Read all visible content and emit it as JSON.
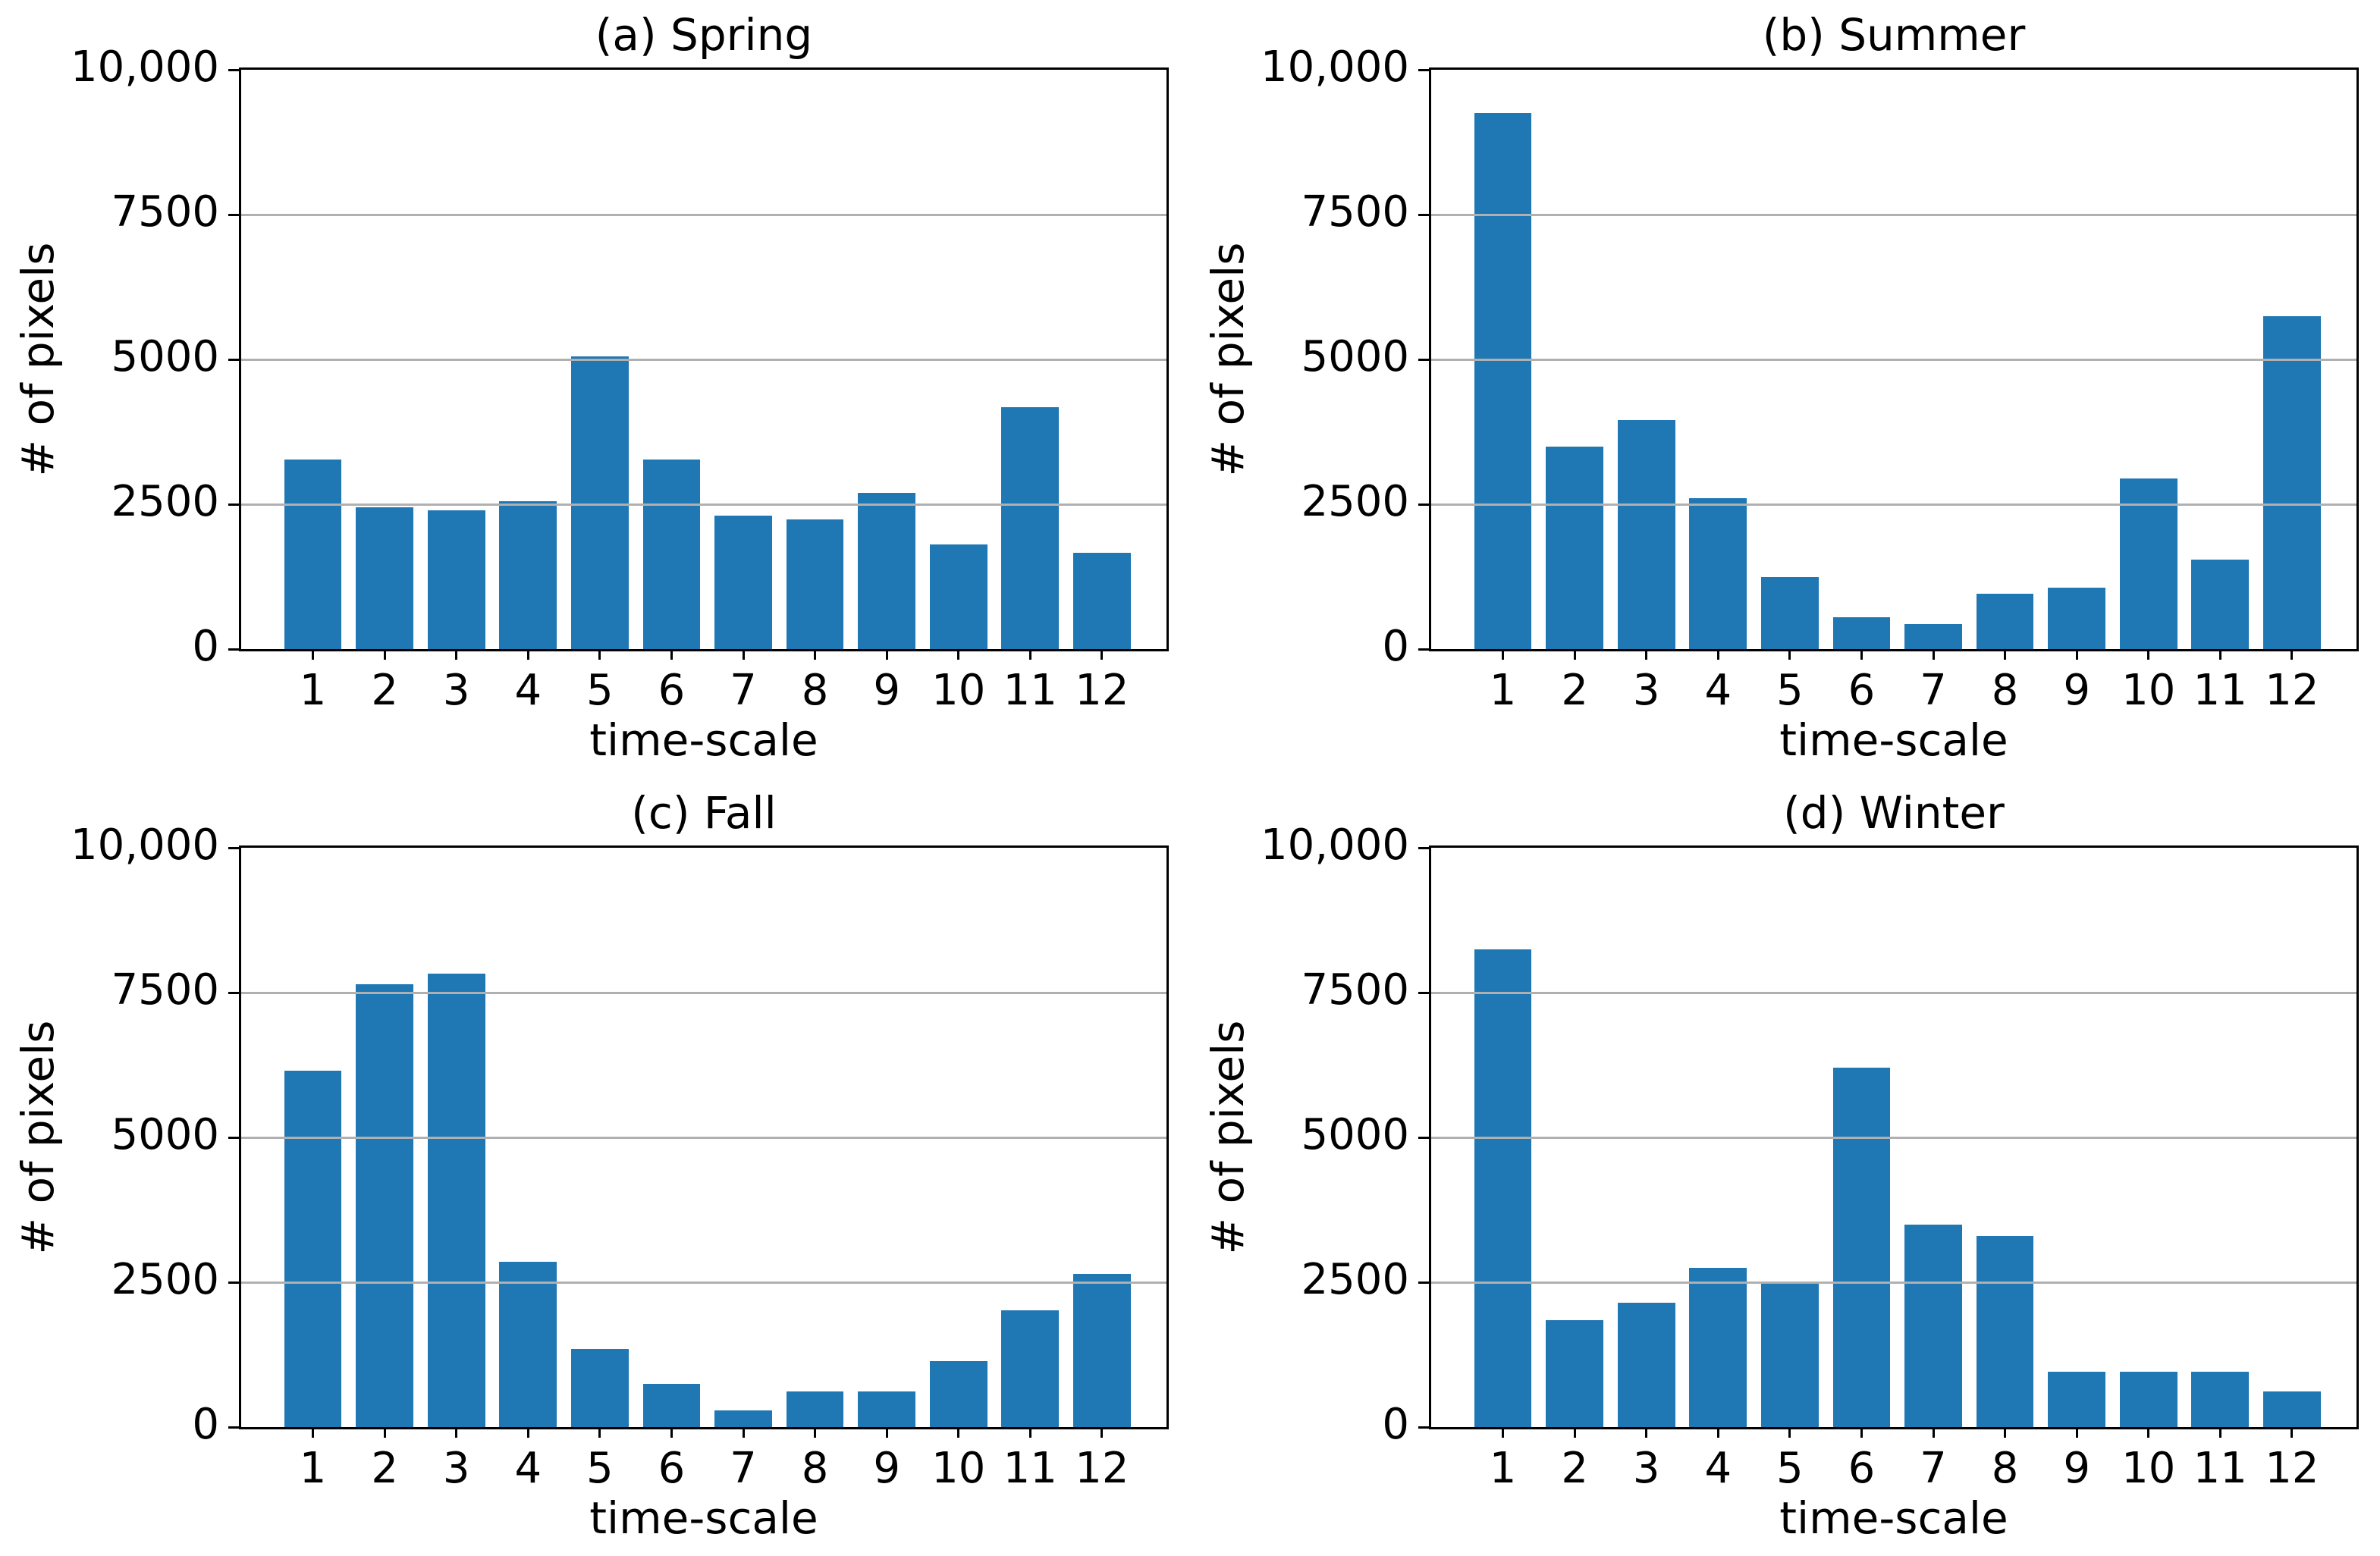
{
  "style": {
    "bar_color": "#1f77b4",
    "grid_color": "#b0b0b0",
    "spine_color": "#000000",
    "text_color": "#000000",
    "background": "#ffffff"
  },
  "chart_data": [
    {
      "type": "bar",
      "panel": "a",
      "title": "(a) Spring",
      "xlabel": "time-scale",
      "ylabel": "# of pixels",
      "categories": [
        "1",
        "2",
        "3",
        "4",
        "5",
        "6",
        "7",
        "8",
        "9",
        "10",
        "11",
        "12"
      ],
      "values": [
        3270,
        2450,
        2400,
        2550,
        5050,
        3270,
        2310,
        2240,
        2700,
        1810,
        4170,
        1660
      ],
      "ylim": [
        0,
        10000
      ],
      "yticks": [
        0,
        2500,
        5000,
        7500,
        10000
      ],
      "ytick_labels": [
        "0",
        "2500",
        "5000",
        "7500",
        "10,000"
      ],
      "grid": "horizontal",
      "legend": "none"
    },
    {
      "type": "bar",
      "panel": "b",
      "title": "(b) Summer",
      "xlabel": "time-scale",
      "ylabel": "# of pixels",
      "categories": [
        "1",
        "2",
        "3",
        "4",
        "5",
        "6",
        "7",
        "8",
        "9",
        "10",
        "11",
        "12"
      ],
      "values": [
        9250,
        3500,
        3950,
        2600,
        1250,
        550,
        430,
        950,
        1060,
        2950,
        1550,
        5750
      ],
      "ylim": [
        0,
        10000
      ],
      "yticks": [
        0,
        2500,
        5000,
        7500,
        10000
      ],
      "ytick_labels": [
        "0",
        "2500",
        "5000",
        "7500",
        "10,000"
      ],
      "grid": "horizontal",
      "legend": "none"
    },
    {
      "type": "bar",
      "panel": "c",
      "title": "(c) Fall",
      "xlabel": "time-scale",
      "ylabel": "# of pixels",
      "categories": [
        "1",
        "2",
        "3",
        "4",
        "5",
        "6",
        "7",
        "8",
        "9",
        "10",
        "11",
        "12"
      ],
      "values": [
        6150,
        7650,
        7830,
        2850,
        1350,
        750,
        290,
        610,
        610,
        1140,
        2020,
        2650
      ],
      "ylim": [
        0,
        10000
      ],
      "yticks": [
        0,
        2500,
        5000,
        7500,
        10000
      ],
      "ytick_labels": [
        "0",
        "2500",
        "5000",
        "7500",
        "10,000"
      ],
      "grid": "horizontal",
      "legend": "none"
    },
    {
      "type": "bar",
      "panel": "d",
      "title": "(d) Winter",
      "xlabel": "time-scale",
      "ylabel": "# of pixels",
      "categories": [
        "1",
        "2",
        "3",
        "4",
        "5",
        "6",
        "7",
        "8",
        "9",
        "10",
        "11",
        "12"
      ],
      "values": [
        8250,
        1850,
        2150,
        2750,
        2480,
        6200,
        3500,
        3300,
        950,
        950,
        950,
        620
      ],
      "ylim": [
        0,
        10000
      ],
      "yticks": [
        0,
        2500,
        5000,
        7500,
        10000
      ],
      "ytick_labels": [
        "0",
        "2500",
        "5000",
        "7500",
        "10,000"
      ],
      "grid": "horizontal",
      "legend": "none"
    }
  ]
}
